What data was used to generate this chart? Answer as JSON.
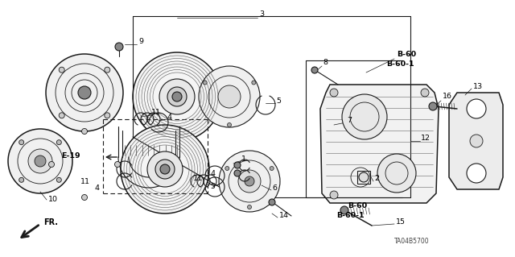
{
  "bg_color": "#ffffff",
  "lc": "#1a1a1a",
  "figsize": [
    6.4,
    3.19
  ],
  "dpi": 100,
  "xlim": [
    0,
    640
  ],
  "ylim": [
    0,
    319
  ]
}
